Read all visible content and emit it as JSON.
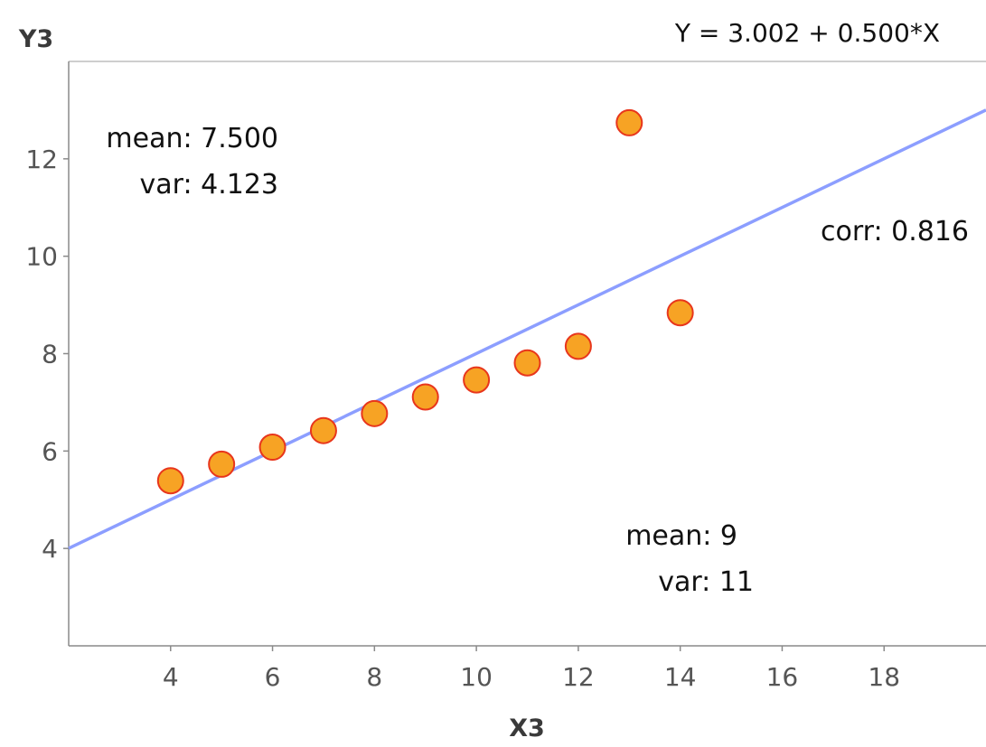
{
  "chart_data": {
    "type": "scatter",
    "title": "",
    "equation": "Y = 3.002 + 0.500*X",
    "xlabel": "X3",
    "ylabel": "Y3",
    "xlim": [
      2,
      20
    ],
    "ylim": [
      2,
      14
    ],
    "x_ticks": [
      "4",
      "6",
      "8",
      "10",
      "12",
      "14",
      "16",
      "18"
    ],
    "y_ticks": [
      "4",
      "6",
      "8",
      "10",
      "12"
    ],
    "points": [
      {
        "x": 4,
        "y": 5.39
      },
      {
        "x": 5,
        "y": 5.73
      },
      {
        "x": 6,
        "y": 6.08
      },
      {
        "x": 7,
        "y": 6.42
      },
      {
        "x": 8,
        "y": 6.77
      },
      {
        "x": 9,
        "y": 7.11
      },
      {
        "x": 10,
        "y": 7.46
      },
      {
        "x": 11,
        "y": 7.81
      },
      {
        "x": 12,
        "y": 8.15
      },
      {
        "x": 13,
        "y": 12.74
      },
      {
        "x": 14,
        "y": 8.84
      }
    ],
    "regression": {
      "intercept": 3.002,
      "slope": 0.5,
      "color": "#8c9eff"
    },
    "marker": {
      "fill": "#f7a324",
      "stroke": "#e8361c"
    },
    "annotations": {
      "y_mean": "mean: 7.500",
      "y_var": "var: 4.123",
      "corr": "corr: 0.816",
      "x_mean": "mean: 9",
      "x_var": "var: 11"
    },
    "grid": false
  }
}
